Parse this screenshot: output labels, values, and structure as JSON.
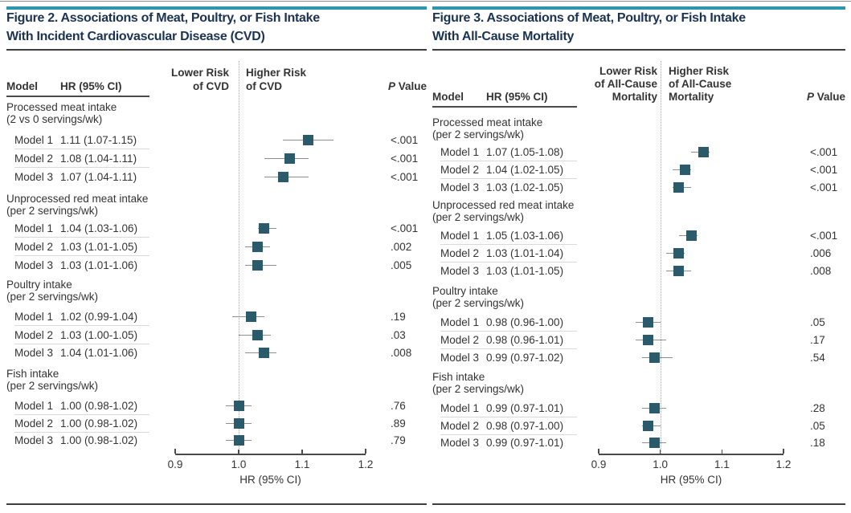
{
  "page": {
    "background": "#ffffff"
  },
  "colors": {
    "accent_bar": "#2C96AE",
    "title_text": "#1B3352",
    "body_text": "#333333",
    "marker": "#2B5A6B",
    "ci_line": "#8F8F8F",
    "reference_dotted_line": "#A3A3A3",
    "dark_rule": "#3D3D3D",
    "row_divider": "#D9D9D9"
  },
  "figures": [
    {
      "title_lines": [
        "Figure 2. Associations of Meat, Poultry, or Fish Intake",
        "With Incident Cardiovascular Disease (CVD)"
      ],
      "columns": {
        "model": "Model",
        "hr": "HR (95% CI)",
        "p": "P Value"
      },
      "direction_labels": {
        "lower": [
          "Lower Risk",
          "of CVD"
        ],
        "higher": [
          "Higher Risk",
          "of CVD"
        ]
      },
      "axis_tick_labels": [
        "0.9",
        "1.0",
        "1.1",
        "1.2"
      ],
      "axis_label": "HR (95% CI)"
    },
    {
      "title_lines": [
        "Figure 3. Associations of Meat, Poultry, or Fish Intake",
        "With All-Cause Mortality"
      ],
      "columns": {
        "model": "Model",
        "hr": "HR (95% CI)",
        "p": "P Value"
      },
      "direction_labels": {
        "lower": [
          "Lower Risk",
          "of All-Cause",
          "Mortality"
        ],
        "higher": [
          "Higher Risk",
          "of All-Cause",
          "Mortality"
        ]
      },
      "axis_tick_labels": [
        "0.9",
        "1.0",
        "1.1",
        "1.2"
      ],
      "axis_label": "HR (95% CI)"
    }
  ],
  "chart_data": [
    {
      "type": "scatter",
      "subtype": "forest-plot",
      "title": "Figure 2. Associations of Meat, Poultry, or Fish Intake With Incident Cardiovascular Disease (CVD)",
      "xlabel": "HR (95% CI)",
      "xlim": [
        0.9,
        1.2
      ],
      "xticks": [
        0.9,
        1.0,
        1.1,
        1.2
      ],
      "reference_line_x": 1.0,
      "series": [
        {
          "name": "Processed meat intake (2 vs 0 servings/wk)",
          "name_lines": [
            "Processed meat intake",
            "(2 vs 0 servings/wk)"
          ],
          "points": [
            {
              "label": "Model 1",
              "text": "1.11 (1.07-1.15)",
              "hr": 1.11,
              "ci": [
                1.07,
                1.15
              ],
              "p": "<.001"
            },
            {
              "label": "Model 2",
              "text": "1.08 (1.04-1.11)",
              "hr": 1.08,
              "ci": [
                1.04,
                1.11
              ],
              "p": "<.001"
            },
            {
              "label": "Model 3",
              "text": "1.07 (1.04-1.11)",
              "hr": 1.07,
              "ci": [
                1.04,
                1.11
              ],
              "p": "<.001"
            }
          ]
        },
        {
          "name": "Unprocessed red meat intake (per 2 servings/wk)",
          "name_lines": [
            "Unprocessed red meat intake",
            "(per 2 servings/wk)"
          ],
          "points": [
            {
              "label": "Model 1",
              "text": "1.04 (1.03-1.06)",
              "hr": 1.04,
              "ci": [
                1.03,
                1.06
              ],
              "p": "<.001"
            },
            {
              "label": "Model 2",
              "text": "1.03 (1.01-1.05)",
              "hr": 1.03,
              "ci": [
                1.01,
                1.05
              ],
              "p": ".002"
            },
            {
              "label": "Model 3",
              "text": "1.03 (1.01-1.06)",
              "hr": 1.03,
              "ci": [
                1.01,
                1.06
              ],
              "p": ".005"
            }
          ]
        },
        {
          "name": "Poultry intake (per 2 servings/wk)",
          "name_lines": [
            "Poultry intake",
            "(per 2 servings/wk)"
          ],
          "points": [
            {
              "label": "Model 1",
              "text": "1.02 (0.99-1.04)",
              "hr": 1.02,
              "ci": [
                0.99,
                1.04
              ],
              "p": ".19"
            },
            {
              "label": "Model 2",
              "text": "1.03 (1.00-1.05)",
              "hr": 1.03,
              "ci": [
                1.0,
                1.05
              ],
              "p": ".03"
            },
            {
              "label": "Model 3",
              "text": "1.04 (1.01-1.06)",
              "hr": 1.04,
              "ci": [
                1.01,
                1.06
              ],
              "p": ".008"
            }
          ]
        },
        {
          "name": "Fish intake (per 2 servings/wk)",
          "name_lines": [
            "Fish intake",
            "(per 2 servings/wk)"
          ],
          "points": [
            {
              "label": "Model 1",
              "text": "1.00 (0.98-1.02)",
              "hr": 1.0,
              "ci": [
                0.98,
                1.02
              ],
              "p": ".76"
            },
            {
              "label": "Model 2",
              "text": "1.00 (0.98-1.02)",
              "hr": 1.0,
              "ci": [
                0.98,
                1.02
              ],
              "p": ".89"
            },
            {
              "label": "Model 3",
              "text": "1.00 (0.98-1.02)",
              "hr": 1.0,
              "ci": [
                0.98,
                1.02
              ],
              "p": ".79"
            }
          ]
        }
      ]
    },
    {
      "type": "scatter",
      "subtype": "forest-plot",
      "title": "Figure 3. Associations of Meat, Poultry, or Fish Intake With All-Cause Mortality",
      "xlabel": "HR (95% CI)",
      "xlim": [
        0.9,
        1.2
      ],
      "xticks": [
        0.9,
        1.0,
        1.1,
        1.2
      ],
      "reference_line_x": 1.0,
      "series": [
        {
          "name": "Processed meat intake (per 2 servings/wk)",
          "name_lines": [
            "Processed meat intake",
            "(per 2 servings/wk)"
          ],
          "points": [
            {
              "label": "Model 1",
              "text": "1.07 (1.05-1.08)",
              "hr": 1.07,
              "ci": [
                1.05,
                1.08
              ],
              "p": "<.001"
            },
            {
              "label": "Model 2",
              "text": "1.04 (1.02-1.05)",
              "hr": 1.04,
              "ci": [
                1.02,
                1.05
              ],
              "p": "<.001"
            },
            {
              "label": "Model 3",
              "text": "1.03 (1.02-1.05)",
              "hr": 1.03,
              "ci": [
                1.02,
                1.05
              ],
              "p": "<.001"
            }
          ]
        },
        {
          "name": "Unprocessed red meat intake (per 2 servings/wk)",
          "name_lines": [
            "Unprocessed red meat intake",
            "(per 2 servings/wk)"
          ],
          "points": [
            {
              "label": "Model 1",
              "text": "1.05 (1.03-1.06)",
              "hr": 1.05,
              "ci": [
                1.03,
                1.06
              ],
              "p": "<.001"
            },
            {
              "label": "Model 2",
              "text": "1.03 (1.01-1.04)",
              "hr": 1.03,
              "ci": [
                1.01,
                1.04
              ],
              "p": ".006"
            },
            {
              "label": "Model 3",
              "text": "1.03 (1.01-1.05)",
              "hr": 1.03,
              "ci": [
                1.01,
                1.05
              ],
              "p": ".008"
            }
          ]
        },
        {
          "name": "Poultry intake (per 2 servings/wk)",
          "name_lines": [
            "Poultry intake",
            "(per 2 servings/wk)"
          ],
          "points": [
            {
              "label": "Model 1",
              "text": "0.98 (0.96-1.00)",
              "hr": 0.98,
              "ci": [
                0.96,
                1.0
              ],
              "p": ".05"
            },
            {
              "label": "Model 2",
              "text": "0.98 (0.96-1.01)",
              "hr": 0.98,
              "ci": [
                0.96,
                1.01
              ],
              "p": ".17"
            },
            {
              "label": "Model 3",
              "text": "0.99 (0.97-1.02)",
              "hr": 0.99,
              "ci": [
                0.97,
                1.02
              ],
              "p": ".54"
            }
          ]
        },
        {
          "name": "Fish intake (per 2 servings/wk)",
          "name_lines": [
            "Fish intake",
            "(per 2 servings/wk)"
          ],
          "points": [
            {
              "label": "Model 1",
              "text": "0.99 (0.97-1.01)",
              "hr": 0.99,
              "ci": [
                0.97,
                1.01
              ],
              "p": ".28"
            },
            {
              "label": "Model 2",
              "text": "0.98 (0.97-1.00)",
              "hr": 0.98,
              "ci": [
                0.97,
                1.0
              ],
              "p": ".05"
            },
            {
              "label": "Model 3",
              "text": "0.99 (0.97-1.01)",
              "hr": 0.99,
              "ci": [
                0.97,
                1.01
              ],
              "p": ".18"
            }
          ]
        }
      ]
    }
  ]
}
